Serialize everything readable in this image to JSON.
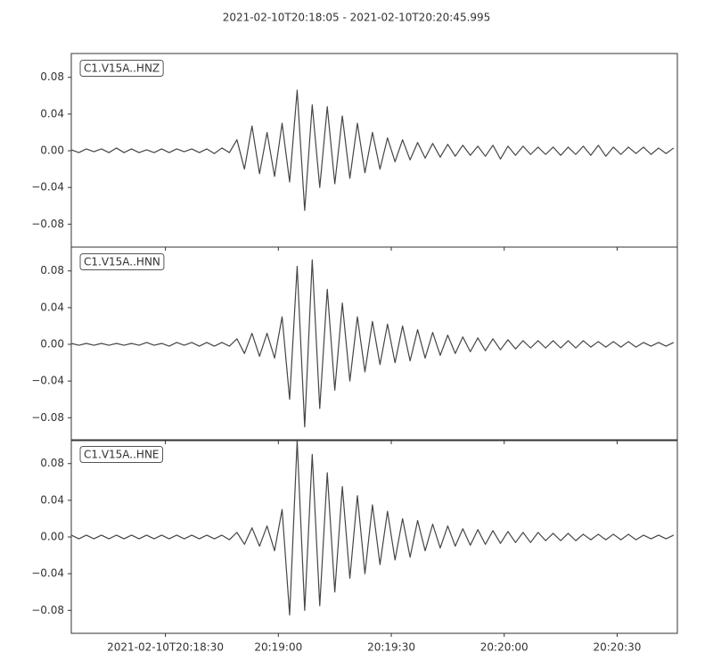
{
  "chart_data": {
    "type": "line",
    "subplots": true,
    "title": "2021-02-10T20:18:05  -  2021-02-10T20:20:45.995",
    "x": [
      "2021-02-10T20:18:05",
      "2021-02-10T20:18:07",
      "2021-02-10T20:18:09",
      "2021-02-10T20:18:11",
      "2021-02-10T20:18:13",
      "2021-02-10T20:18:15",
      "2021-02-10T20:18:17",
      "2021-02-10T20:18:19",
      "2021-02-10T20:18:21",
      "2021-02-10T20:18:23",
      "2021-02-10T20:18:25",
      "2021-02-10T20:18:27",
      "2021-02-10T20:18:29",
      "2021-02-10T20:18:31",
      "2021-02-10T20:18:33",
      "2021-02-10T20:18:35",
      "2021-02-10T20:18:37",
      "2021-02-10T20:18:39",
      "2021-02-10T20:18:41",
      "2021-02-10T20:18:43",
      "2021-02-10T20:18:45",
      "2021-02-10T20:18:47",
      "2021-02-10T20:18:49",
      "2021-02-10T20:18:51",
      "2021-02-10T20:18:53",
      "2021-02-10T20:18:55",
      "2021-02-10T20:18:57",
      "2021-02-10T20:18:59",
      "2021-02-10T20:19:01",
      "2021-02-10T20:19:03",
      "2021-02-10T20:19:05",
      "2021-02-10T20:19:07",
      "2021-02-10T20:19:09",
      "2021-02-10T20:19:11",
      "2021-02-10T20:19:13",
      "2021-02-10T20:19:15",
      "2021-02-10T20:19:17",
      "2021-02-10T20:19:19",
      "2021-02-10T20:19:21",
      "2021-02-10T20:19:23",
      "2021-02-10T20:19:25",
      "2021-02-10T20:19:27",
      "2021-02-10T20:19:29",
      "2021-02-10T20:19:31",
      "2021-02-10T20:19:33",
      "2021-02-10T20:19:35",
      "2021-02-10T20:19:37",
      "2021-02-10T20:19:39",
      "2021-02-10T20:19:41",
      "2021-02-10T20:19:43",
      "2021-02-10T20:19:45",
      "2021-02-10T20:19:47",
      "2021-02-10T20:19:49",
      "2021-02-10T20:19:51",
      "2021-02-10T20:19:53",
      "2021-02-10T20:19:55",
      "2021-02-10T20:19:57",
      "2021-02-10T20:19:59",
      "2021-02-10T20:20:01",
      "2021-02-10T20:20:03",
      "2021-02-10T20:20:05",
      "2021-02-10T20:20:07",
      "2021-02-10T20:20:09",
      "2021-02-10T20:20:11",
      "2021-02-10T20:20:13",
      "2021-02-10T20:20:15",
      "2021-02-10T20:20:17",
      "2021-02-10T20:20:19",
      "2021-02-10T20:20:21",
      "2021-02-10T20:20:23",
      "2021-02-10T20:20:25",
      "2021-02-10T20:20:27",
      "2021-02-10T20:20:29",
      "2021-02-10T20:20:31",
      "2021-02-10T20:20:33",
      "2021-02-10T20:20:35",
      "2021-02-10T20:20:37",
      "2021-02-10T20:20:39",
      "2021-02-10T20:20:41",
      "2021-02-10T20:20:43",
      "2021-02-10T20:20:45"
    ],
    "series": [
      {
        "name": "C1.V15A..HNZ",
        "color": "#454545",
        "values": [
          0.001,
          -0.002,
          0.002,
          -0.001,
          0.002,
          -0.002,
          0.003,
          -0.002,
          0.002,
          -0.002,
          0.001,
          -0.002,
          0.002,
          -0.002,
          0.002,
          -0.001,
          0.002,
          -0.002,
          0.002,
          -0.003,
          0.003,
          -0.002,
          0.012,
          -0.02,
          0.027,
          -0.025,
          0.02,
          -0.028,
          0.03,
          -0.034,
          0.066,
          -0.065,
          0.05,
          -0.04,
          0.048,
          -0.036,
          0.038,
          -0.03,
          0.03,
          -0.024,
          0.02,
          -0.02,
          0.014,
          -0.012,
          0.012,
          -0.01,
          0.009,
          -0.008,
          0.008,
          -0.007,
          0.007,
          -0.006,
          0.006,
          -0.005,
          0.005,
          -0.006,
          0.006,
          -0.009,
          0.005,
          -0.005,
          0.005,
          -0.004,
          0.004,
          -0.004,
          0.004,
          -0.005,
          0.004,
          -0.004,
          0.005,
          -0.005,
          0.006,
          -0.006,
          0.004,
          -0.004,
          0.004,
          -0.003,
          0.004,
          -0.004,
          0.003,
          -0.003,
          0.003
        ]
      },
      {
        "name": "C1.V15A..HNN",
        "color": "#454545",
        "values": [
          0.001,
          -0.001,
          0.001,
          -0.001,
          0.001,
          -0.001,
          0.001,
          -0.001,
          0.001,
          -0.001,
          0.002,
          -0.001,
          0.001,
          -0.002,
          0.002,
          -0.001,
          0.002,
          -0.002,
          0.002,
          -0.002,
          0.002,
          -0.002,
          0.006,
          -0.01,
          0.012,
          -0.013,
          0.012,
          -0.015,
          0.03,
          -0.06,
          0.085,
          -0.09,
          0.092,
          -0.07,
          0.06,
          -0.05,
          0.045,
          -0.04,
          0.03,
          -0.03,
          0.025,
          -0.022,
          0.022,
          -0.02,
          0.02,
          -0.018,
          0.016,
          -0.015,
          0.013,
          -0.012,
          0.01,
          -0.01,
          0.008,
          -0.008,
          0.007,
          -0.007,
          0.006,
          -0.006,
          0.005,
          -0.005,
          0.004,
          -0.004,
          0.004,
          -0.004,
          0.004,
          -0.004,
          0.004,
          -0.004,
          0.004,
          -0.003,
          0.003,
          -0.003,
          0.003,
          -0.003,
          0.003,
          -0.003,
          0.002,
          -0.002,
          0.002,
          -0.002,
          0.002
        ]
      },
      {
        "name": "C1.V15A..HNE",
        "color": "#454545",
        "values": [
          0.002,
          -0.002,
          0.002,
          -0.002,
          0.002,
          -0.002,
          0.002,
          -0.002,
          0.002,
          -0.002,
          0.002,
          -0.002,
          0.002,
          -0.002,
          0.002,
          -0.002,
          0.002,
          -0.002,
          0.002,
          -0.002,
          0.002,
          -0.003,
          0.005,
          -0.008,
          0.01,
          -0.01,
          0.012,
          -0.015,
          0.03,
          -0.085,
          0.105,
          -0.08,
          0.09,
          -0.075,
          0.07,
          -0.06,
          0.055,
          -0.045,
          0.045,
          -0.04,
          0.035,
          -0.03,
          0.028,
          -0.025,
          0.02,
          -0.022,
          0.018,
          -0.015,
          0.014,
          -0.012,
          0.012,
          -0.01,
          0.009,
          -0.009,
          0.008,
          -0.008,
          0.007,
          -0.007,
          0.006,
          -0.006,
          0.005,
          -0.006,
          0.005,
          -0.004,
          0.004,
          -0.004,
          0.004,
          -0.004,
          0.003,
          -0.003,
          0.003,
          -0.003,
          0.003,
          -0.003,
          0.003,
          -0.003,
          0.002,
          -0.002,
          0.002,
          -0.002,
          0.002
        ]
      }
    ],
    "ylim": [
      -0.105,
      0.106
    ],
    "yticks": [
      {
        "value": -0.08,
        "label": "−0.08"
      },
      {
        "value": -0.04,
        "label": "−0.04"
      },
      {
        "value": 0,
        "label": "0.00"
      },
      0.04,
      0.08
    ],
    "xlim": [
      "2021-02-10T20:18:05",
      "2021-02-10T20:20:45.995"
    ],
    "xticks": [
      "2021-02-10T20:18:30",
      {
        "value": "2021-02-10T20:19:00",
        "label": "20:19:00"
      },
      {
        "value": "2021-02-10T20:19:30",
        "label": "20:19:30"
      },
      {
        "value": "2021-02-10T20:20:00",
        "label": "20:20:00"
      },
      {
        "value": "2021-02-10T20:20:30",
        "label": "20:20:30"
      }
    ]
  }
}
